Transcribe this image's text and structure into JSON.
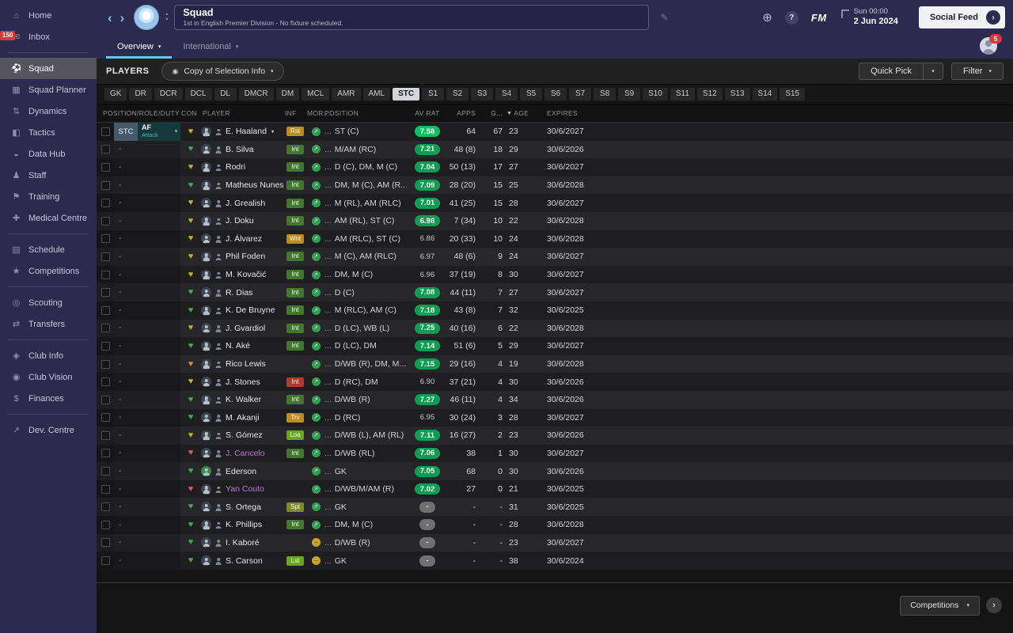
{
  "glyphs": {
    "caret_down": "▾",
    "caret_up": "▴",
    "back": "‹",
    "forward": "›",
    "pencil": "✎",
    "globe": "⊕",
    "next": "›",
    "heart": "♥",
    "morale_up": "↗",
    "morale_flat": "→",
    "view_icon": "◉",
    "sort_desc": "▼"
  },
  "colors": {
    "accent_blue": "#6fc2ff",
    "city_blue": "#98c5e9",
    "sidebar_purple": "#2d2a4f",
    "rating_bright": "#0fbf61",
    "rating_green": "#0e9e52",
    "rating_empty": "#707070",
    "heart_green": "#3fae49",
    "heart_yellow": "#c9a92c",
    "heart_orange": "#e0882f",
    "heart_red": "#e25563",
    "badge_orange": "#c08a1e",
    "badge_green": "#41782e",
    "badge_red": "#b03a30",
    "badge_lime": "#68a81f",
    "badge_olive": "#7c8a24",
    "loan_name": "#b873d6"
  },
  "sidebar": {
    "items": [
      {
        "label": "Home",
        "icon": "home-icon",
        "glyph": "⌂"
      },
      {
        "label": "Inbox",
        "icon": "inbox-icon",
        "glyph": "✉",
        "badge": "150",
        "divider_after": true
      },
      {
        "label": "Squad",
        "icon": "squad-icon",
        "glyph": "⚽",
        "active": true
      },
      {
        "label": "Squad Planner",
        "icon": "squad-planner-icon",
        "glyph": "▦"
      },
      {
        "label": "Dynamics",
        "icon": "dynamics-icon",
        "glyph": "⇅"
      },
      {
        "label": "Tactics",
        "icon": "tactics-icon",
        "glyph": "◧"
      },
      {
        "label": "Data Hub",
        "icon": "data-hub-icon",
        "glyph": "◒"
      },
      {
        "label": "Staff",
        "icon": "staff-icon",
        "glyph": "♟"
      },
      {
        "label": "Training",
        "icon": "training-icon",
        "glyph": "⚑"
      },
      {
        "label": "Medical Centre",
        "icon": "medical-centre-icon",
        "glyph": "✚",
        "divider_after": true
      },
      {
        "label": "Schedule",
        "icon": "schedule-icon",
        "glyph": "▤"
      },
      {
        "label": "Competitions",
        "icon": "competitions-icon",
        "glyph": "★",
        "divider_after": true
      },
      {
        "label": "Scouting",
        "icon": "scouting-icon",
        "glyph": "◎"
      },
      {
        "label": "Transfers",
        "icon": "transfers-icon",
        "glyph": "⇄",
        "divider_after": true
      },
      {
        "label": "Club Info",
        "icon": "club-info-icon",
        "glyph": "◈"
      },
      {
        "label": "Club Vision",
        "icon": "club-vision-icon",
        "glyph": "◉"
      },
      {
        "label": "Finances",
        "icon": "finances-icon",
        "glyph": "$",
        "divider_after": true
      },
      {
        "label": "Dev. Centre",
        "icon": "dev-centre-icon",
        "glyph": "↗"
      }
    ]
  },
  "header": {
    "title": "Squad",
    "subtitle": "1st in English Premier Division - No fixture scheduled.",
    "clock_day": "Sun 00:00",
    "clock_date": "2 Jun 2024",
    "fm_label": "FM",
    "help_label": "?",
    "social_feed_label": "Social Feed",
    "notif_count": "5"
  },
  "tabs": {
    "items": [
      {
        "label": "Overview",
        "active": true
      },
      {
        "label": "International",
        "active": false
      }
    ]
  },
  "players_bar": {
    "label": "PLAYERS",
    "view_selector": "Copy of Selection Info",
    "quick_pick": "Quick Pick",
    "filter": "Filter"
  },
  "position_chips": {
    "active": "STC",
    "items": [
      "GK",
      "DR",
      "DCR",
      "DCL",
      "DL",
      "DMCR",
      "DM",
      "MCL",
      "AMR",
      "AML",
      "STC",
      "S1",
      "S2",
      "S3",
      "S4",
      "S5",
      "S6",
      "S7",
      "S8",
      "S9",
      "S10",
      "S11",
      "S12",
      "S13",
      "S14",
      "S15"
    ]
  },
  "table": {
    "ellipsis": "...",
    "sort_arrow": "▼",
    "columns": [
      "POSITION/ROLE/DUTY",
      "CON",
      "PLAYER",
      "INF",
      "MOR...",
      "POSITION",
      "AV RAT",
      "APPS",
      "G...",
      "AGE",
      "EXPIRES"
    ],
    "rows": [
      {
        "pos": "STC",
        "role": {
          "pos": "STC",
          "role": "AF",
          "duty": "Attack"
        },
        "heart": "yellow",
        "name": "E. Haaland",
        "caret": true,
        "inf": "Rst",
        "inf_color": "orange",
        "morale": "green",
        "position": "ST (C)",
        "rating": "7.58",
        "rating_style": "bright",
        "apps": "64",
        "goals": "67",
        "age": "23",
        "expires": "30/6/2027"
      },
      {
        "pos": "-",
        "heart": "green",
        "name": "B. Silva",
        "inf": "Int",
        "inf_color": "green",
        "morale": "green",
        "position": "M/AM (RC)",
        "rating": "7.21",
        "rating_style": "green",
        "apps": "48 (8)",
        "goals": "18",
        "age": "29",
        "expires": "30/6/2026"
      },
      {
        "pos": "-",
        "heart": "yellow",
        "name": "Rodri",
        "inf": "Int",
        "inf_color": "green",
        "morale": "green",
        "position": "D (C), DM, M (C)",
        "rating": "7.04",
        "rating_style": "green",
        "apps": "50 (13)",
        "goals": "17",
        "age": "27",
        "expires": "30/6/2027"
      },
      {
        "pos": "-",
        "heart": "green",
        "name": "Matheus Nunes",
        "inf": "Int",
        "inf_color": "green",
        "morale": "green",
        "position": "DM, M (C), AM (R...",
        "rating": "7.09",
        "rating_style": "green",
        "apps": "28 (20)",
        "goals": "15",
        "age": "25",
        "expires": "30/6/2028"
      },
      {
        "pos": "-",
        "heart": "yellow",
        "name": "J. Grealish",
        "inf": "Int",
        "inf_color": "green",
        "morale": "green",
        "position": "M (RL), AM (RLC)",
        "rating": "7.01",
        "rating_style": "green",
        "apps": "41 (25)",
        "goals": "15",
        "age": "28",
        "expires": "30/6/2027"
      },
      {
        "pos": "-",
        "heart": "yellow",
        "name": "J. Doku",
        "inf": "Int",
        "inf_color": "green",
        "morale": "green",
        "position": "AM (RL), ST (C)",
        "rating": "6.98",
        "rating_style": "green",
        "apps": "7 (34)",
        "goals": "10",
        "age": "22",
        "expires": "30/6/2028"
      },
      {
        "pos": "-",
        "heart": "yellow",
        "name": "J. Álvarez",
        "inf": "Wnt",
        "inf_color": "orange",
        "morale": "green",
        "position": "AM (RLC), ST (C)",
        "rating": "6.86",
        "rating_style": "plain",
        "apps": "20 (33)",
        "goals": "10",
        "age": "24",
        "expires": "30/6/2028"
      },
      {
        "pos": "-",
        "heart": "yellow",
        "name": "Phil Foden",
        "inf": "Int",
        "inf_color": "green",
        "morale": "green",
        "position": "M (C), AM (RLC)",
        "rating": "6.97",
        "rating_style": "plain",
        "apps": "48 (6)",
        "goals": "9",
        "age": "24",
        "expires": "30/6/2027"
      },
      {
        "pos": "-",
        "heart": "yellow",
        "name": "M. Kovačić",
        "inf": "Int",
        "inf_color": "green",
        "morale": "green",
        "position": "DM, M (C)",
        "rating": "6.96",
        "rating_style": "plain",
        "apps": "37 (19)",
        "goals": "8",
        "age": "30",
        "expires": "30/6/2027"
      },
      {
        "pos": "-",
        "heart": "green",
        "name": "R. Dias",
        "inf": "Int",
        "inf_color": "green",
        "morale": "green",
        "position": "D (C)",
        "rating": "7.08",
        "rating_style": "green",
        "apps": "44 (11)",
        "goals": "7",
        "age": "27",
        "expires": "30/6/2027"
      },
      {
        "pos": "-",
        "heart": "green",
        "name": "K. De Bruyne",
        "inf": "Int",
        "inf_color": "green",
        "morale": "green",
        "position": "M (RLC), AM (C)",
        "rating": "7.18",
        "rating_style": "green",
        "apps": "43 (8)",
        "goals": "7",
        "age": "32",
        "expires": "30/6/2025"
      },
      {
        "pos": "-",
        "heart": "yellow",
        "name": "J. Gvardiol",
        "inf": "Int",
        "inf_color": "green",
        "morale": "green",
        "position": "D (LC), WB (L)",
        "rating": "7.25",
        "rating_style": "green",
        "apps": "40 (16)",
        "goals": "6",
        "age": "22",
        "expires": "30/6/2028"
      },
      {
        "pos": "-",
        "heart": "green",
        "name": "N. Aké",
        "inf": "Int",
        "inf_color": "green",
        "morale": "green",
        "position": "D (LC), DM",
        "rating": "7.14",
        "rating_style": "green",
        "apps": "51 (6)",
        "goals": "5",
        "age": "29",
        "expires": "30/6/2027"
      },
      {
        "pos": "-",
        "heart": "orange",
        "name": "Rico Lewis",
        "morale": "green",
        "position": "D/WB (R), DM, M...",
        "rating": "7.15",
        "rating_style": "green",
        "apps": "29 (16)",
        "goals": "4",
        "age": "19",
        "expires": "30/6/2028"
      },
      {
        "pos": "-",
        "heart": "yellow",
        "name": "J. Stones",
        "inf": "Int",
        "inf_color": "red",
        "morale": "green",
        "position": "D (RC), DM",
        "rating": "6.90",
        "rating_style": "plain",
        "apps": "37 (21)",
        "goals": "4",
        "age": "30",
        "expires": "30/6/2026"
      },
      {
        "pos": "-",
        "heart": "green",
        "name": "K. Walker",
        "inf": "Int",
        "inf_color": "green",
        "morale": "green",
        "position": "D/WB (R)",
        "rating": "7.27",
        "rating_style": "green",
        "apps": "46 (11)",
        "goals": "4",
        "age": "34",
        "expires": "30/6/2026"
      },
      {
        "pos": "-",
        "heart": "green",
        "name": "M. Akanji",
        "inf": "Trv",
        "inf_color": "orange",
        "morale": "green",
        "position": "D (RC)",
        "rating": "6.95",
        "rating_style": "plain",
        "apps": "30 (24)",
        "goals": "3",
        "age": "28",
        "expires": "30/6/2027"
      },
      {
        "pos": "-",
        "heart": "yellow",
        "name": "S. Gómez",
        "inf": "Loa",
        "inf_color": "lime",
        "morale": "green",
        "position": "D/WB (L), AM (RL)",
        "rating": "7.11",
        "rating_style": "green",
        "apps": "16 (27)",
        "goals": "2",
        "age": "23",
        "expires": "30/6/2026"
      },
      {
        "pos": "-",
        "heart": "red",
        "name": "J. Cancelo",
        "name_loan": true,
        "inf": "Int",
        "inf_color": "green",
        "morale": "green",
        "position": "D/WB (RL)",
        "rating": "7.06",
        "rating_style": "green",
        "apps": "38",
        "goals": "1",
        "age": "30",
        "expires": "30/6/2027"
      },
      {
        "pos": "-",
        "heart": "green",
        "name": "Ederson",
        "avatar": "green",
        "morale": "green",
        "position": "GK",
        "rating": "7.05",
        "rating_style": "green",
        "apps": "68",
        "goals": "0",
        "age": "30",
        "expires": "30/6/2026"
      },
      {
        "pos": "-",
        "heart": "red",
        "name": "Yan Couto",
        "name_loan": true,
        "morale": "green",
        "position": "D/WB/M/AM (R)",
        "rating": "7.02",
        "rating_style": "green",
        "apps": "27",
        "goals": "0",
        "age": "21",
        "expires": "30/6/2025"
      },
      {
        "pos": "-",
        "heart": "green",
        "name": "S. Ortega",
        "inf": "Spt",
        "inf_color": "olive",
        "morale": "green",
        "position": "GK",
        "rating": "-",
        "rating_style": "empty",
        "apps": "-",
        "goals": "-",
        "age": "31",
        "expires": "30/6/2025"
      },
      {
        "pos": "-",
        "heart": "green",
        "name": "K. Phillips",
        "inf": "Int",
        "inf_color": "green",
        "morale": "green",
        "position": "DM, M (C)",
        "rating": "-",
        "rating_style": "empty",
        "apps": "-",
        "goals": "-",
        "age": "28",
        "expires": "30/6/2028"
      },
      {
        "pos": "-",
        "heart": "green",
        "name": "I. Kaboré",
        "morale": "yellow",
        "position": "D/WB (R)",
        "rating": "-",
        "rating_style": "empty",
        "apps": "-",
        "goals": "-",
        "age": "23",
        "expires": "30/6/2027"
      },
      {
        "pos": "-",
        "heart": "green",
        "name": "S. Carson",
        "inf": "Lst",
        "inf_color": "lime",
        "morale": "yellow",
        "position": "GK",
        "rating": "-",
        "rating_style": "empty",
        "apps": "-",
        "goals": "-",
        "age": "38",
        "expires": "30/6/2024"
      }
    ]
  },
  "footer": {
    "competitions_label": "Competitions"
  }
}
